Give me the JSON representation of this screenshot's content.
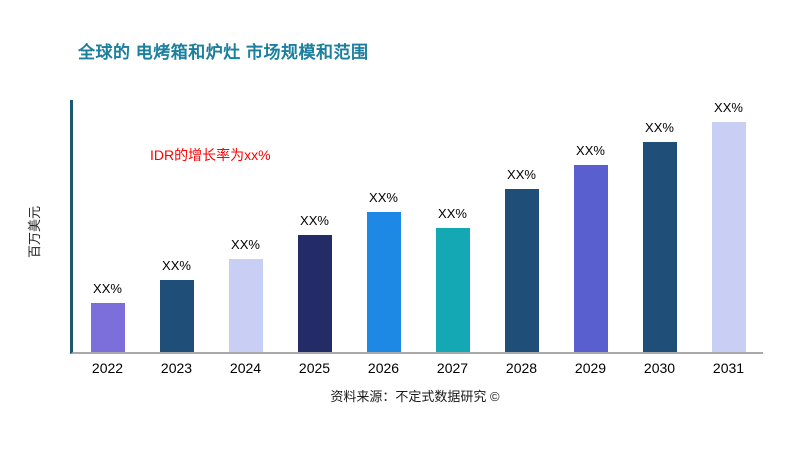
{
  "title": "全球的 电烤箱和炉灶 市场规模和范围",
  "annotation": {
    "text": "IDR的增长率为xx%",
    "color": "#ff0000"
  },
  "source": "资料来源：不定式数据研究 ©",
  "colors": {
    "title": "#1b7f9e",
    "y_axis_line": "#1d5a6e",
    "x_axis_line": "#a9a9a9"
  },
  "chart_data": {
    "type": "bar",
    "title": "全球的 电烤箱和炉灶 市场规模和范围",
    "xlabel": "",
    "ylabel": "百万美元",
    "categories": [
      "2022",
      "2023",
      "2024",
      "2025",
      "2026",
      "2027",
      "2028",
      "2029",
      "2030",
      "2031"
    ],
    "values": [
      21,
      31,
      40,
      50,
      60,
      53,
      70,
      80,
      90,
      100
    ],
    "bar_labels": [
      "XX%",
      "XX%",
      "XX%",
      "XX%",
      "XX%",
      "XX%",
      "XX%",
      "XX%",
      "XX%",
      "XX%"
    ],
    "bar_colors": [
      "#7c6fdb",
      "#1f4e79",
      "#c9cef4",
      "#232c66",
      "#1e88e5",
      "#13a8b4",
      "#1f4e79",
      "#5a5fcf",
      "#1f4e79",
      "#c9cef4"
    ],
    "ylim": [
      0,
      108
    ],
    "grid": false,
    "legend": false,
    "annotations": [
      "IDR的增长率为xx%"
    ]
  }
}
